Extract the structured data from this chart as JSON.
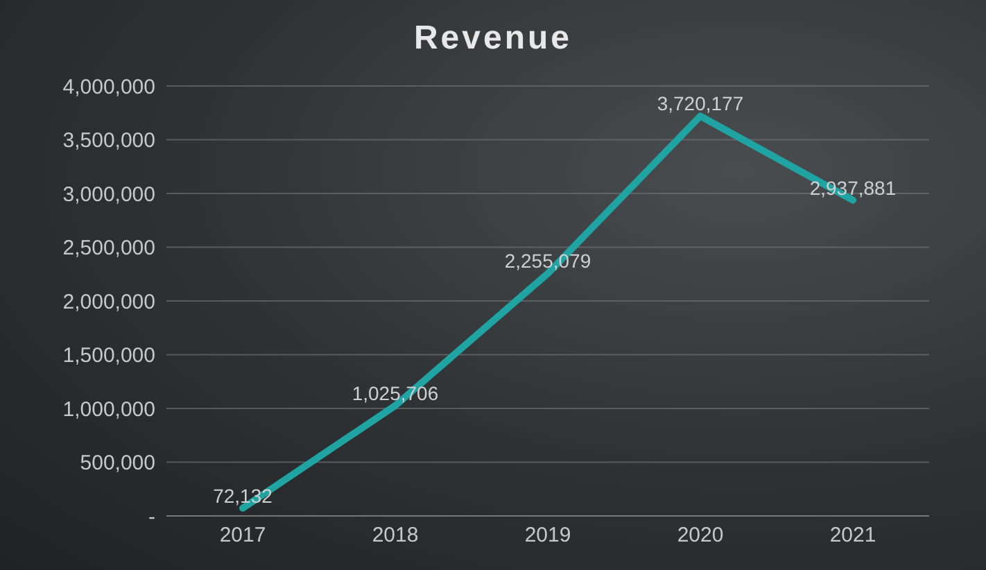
{
  "chart_data": {
    "type": "line",
    "title": "Revenue",
    "categories": [
      "2017",
      "2018",
      "2019",
      "2020",
      "2021"
    ],
    "series": [
      {
        "color": "#1fa3a3",
        "values": [
          72132,
          1025706,
          2255079,
          3720177,
          2937881
        ],
        "value_labels": [
          "72,132",
          "1,025,706",
          "2,255,079",
          "3,720,177",
          "2,937,881"
        ]
      }
    ],
    "ylim": [
      0,
      4000000
    ],
    "yticks": [
      {
        "value": 0,
        "label": "-"
      },
      {
        "value": 500000,
        "label": "500,000"
      },
      {
        "value": 1000000,
        "label": "1,000,000"
      },
      {
        "value": 1500000,
        "label": "1,500,000"
      },
      {
        "value": 2000000,
        "label": "2,000,000"
      },
      {
        "value": 2500000,
        "label": "2,500,000"
      },
      {
        "value": 3000000,
        "label": "3,000,000"
      },
      {
        "value": 3500000,
        "label": "3,500,000"
      },
      {
        "value": 4000000,
        "label": "4,000,000"
      }
    ],
    "grid": "y",
    "marker": "none",
    "line_style": "solid"
  }
}
